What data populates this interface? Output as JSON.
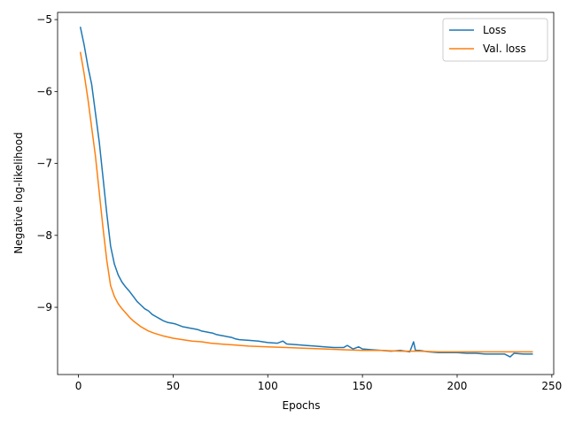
{
  "chart_data": {
    "type": "line",
    "title": "",
    "xlabel": "Epochs",
    "ylabel": "Negative log-likelihood",
    "xlim": [
      -11,
      251
    ],
    "ylim": [
      -9.935,
      -4.9
    ],
    "xticks": [
      0,
      50,
      100,
      150,
      200,
      250
    ],
    "yticks": [
      -9,
      -8,
      -7,
      -6,
      -5
    ],
    "xtick_labels": [
      "0",
      "50",
      "100",
      "150",
      "200",
      "250"
    ],
    "ytick_labels": [
      "−9",
      "−8",
      "−7",
      "−6",
      "−5"
    ],
    "grid": false,
    "legend_position": "top-right",
    "series": [
      {
        "name": "Loss",
        "color": "#1f77b4",
        "x": [
          1,
          3,
          5,
          7,
          9,
          11,
          13,
          15,
          17,
          19,
          21,
          23,
          25,
          27,
          29,
          31,
          33,
          35,
          37,
          39,
          41,
          43,
          45,
          47,
          49,
          51,
          53,
          55,
          57,
          59,
          61,
          63,
          65,
          67,
          69,
          71,
          73,
          75,
          77,
          79,
          81,
          83,
          85,
          90,
          95,
          100,
          105,
          108,
          110,
          115,
          120,
          125,
          130,
          135,
          140,
          142,
          145,
          148,
          150,
          155,
          160,
          165,
          170,
          175,
          177,
          178,
          180,
          185,
          190,
          195,
          200,
          205,
          210,
          215,
          220,
          225,
          228,
          230,
          235,
          240
        ],
        "values": [
          -5.1,
          -5.35,
          -5.65,
          -5.9,
          -6.3,
          -6.7,
          -7.2,
          -7.7,
          -8.15,
          -8.4,
          -8.55,
          -8.65,
          -8.72,
          -8.78,
          -8.85,
          -8.92,
          -8.97,
          -9.02,
          -9.05,
          -9.1,
          -9.13,
          -9.16,
          -9.19,
          -9.21,
          -9.22,
          -9.23,
          -9.25,
          -9.27,
          -9.28,
          -9.29,
          -9.3,
          -9.31,
          -9.33,
          -9.34,
          -9.35,
          -9.36,
          -9.38,
          -9.39,
          -9.4,
          -9.41,
          -9.42,
          -9.44,
          -9.45,
          -9.46,
          -9.47,
          -9.49,
          -9.5,
          -9.47,
          -9.51,
          -9.52,
          -9.53,
          -9.54,
          -9.55,
          -9.56,
          -9.56,
          -9.53,
          -9.58,
          -9.55,
          -9.58,
          -9.59,
          -9.6,
          -9.61,
          -9.6,
          -9.62,
          -9.48,
          -9.6,
          -9.6,
          -9.62,
          -9.63,
          -9.63,
          -9.63,
          -9.64,
          -9.64,
          -9.65,
          -9.65,
          -9.65,
          -9.69,
          -9.64,
          -9.65,
          -9.65
        ]
      },
      {
        "name": "Val. loss",
        "color": "#ff7f0e",
        "x": [
          1,
          3,
          5,
          7,
          9,
          11,
          13,
          15,
          17,
          19,
          21,
          23,
          25,
          27,
          29,
          31,
          33,
          35,
          37,
          40,
          45,
          50,
          55,
          60,
          65,
          70,
          75,
          80,
          90,
          100,
          110,
          120,
          130,
          140,
          150,
          160,
          170,
          180,
          190,
          200,
          210,
          220,
          230,
          240
        ],
        "values": [
          -5.45,
          -5.75,
          -6.1,
          -6.5,
          -6.9,
          -7.4,
          -7.9,
          -8.35,
          -8.7,
          -8.85,
          -8.95,
          -9.02,
          -9.08,
          -9.14,
          -9.19,
          -9.23,
          -9.27,
          -9.3,
          -9.33,
          -9.36,
          -9.4,
          -9.43,
          -9.45,
          -9.47,
          -9.48,
          -9.5,
          -9.51,
          -9.52,
          -9.54,
          -9.55,
          -9.56,
          -9.57,
          -9.58,
          -9.59,
          -9.6,
          -9.6,
          -9.61,
          -9.61,
          -9.62,
          -9.62,
          -9.62,
          -9.62,
          -9.62,
          -9.62
        ]
      }
    ]
  }
}
